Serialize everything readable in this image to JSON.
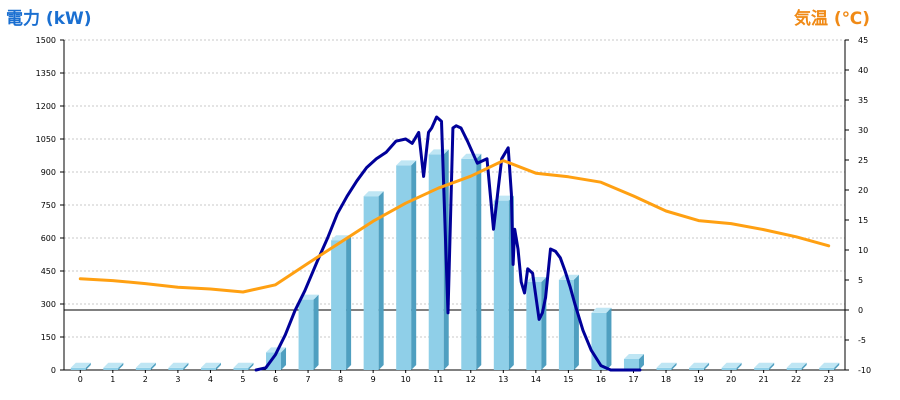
{
  "titles": {
    "left": "電力 (kW)",
    "right": "気温 (℃)"
  },
  "colors": {
    "left_title": "#1a6fd1",
    "right_title": "#f08a16",
    "bar_front": "#8fcfe8",
    "bar_side": "#4f9fc0",
    "bar_top": "#bfe6f4",
    "line_power": "#000099",
    "line_temp": "#ffa012",
    "grid": "#c8c8c8"
  },
  "chart_data": {
    "type": "bar",
    "title": "",
    "categories": [
      "0",
      "1",
      "2",
      "3",
      "4",
      "5",
      "6",
      "7",
      "8",
      "9",
      "10",
      "11",
      "12",
      "13",
      "14",
      "15",
      "16",
      "17",
      "18",
      "19",
      "20",
      "21",
      "22",
      "23"
    ],
    "left_axis": {
      "label": "電力 (kW)",
      "range": [
        0,
        1500
      ],
      "ticks": [
        0,
        150,
        300,
        450,
        600,
        750,
        900,
        1050,
        1200,
        1350,
        1500
      ]
    },
    "right_axis": {
      "label": "気温 (℃)",
      "range": [
        -10,
        45
      ],
      "ticks": [
        -10,
        -5,
        0,
        5,
        10,
        15,
        20,
        25,
        30,
        35,
        40,
        45
      ]
    },
    "grid": true,
    "series": [
      {
        "type": "bar",
        "axis": "left",
        "values": [
          10,
          10,
          10,
          10,
          10,
          10,
          80,
          320,
          590,
          790,
          930,
          980,
          960,
          770,
          400,
          410,
          260,
          50,
          10,
          10,
          10,
          10,
          10,
          10
        ]
      },
      {
        "type": "line",
        "axis": "left",
        "x": [
          5.4,
          5.7,
          6,
          6.3,
          6.6,
          6.9,
          7.1,
          7.3,
          7.6,
          7.9,
          8.2,
          8.5,
          8.8,
          9.1,
          9.4,
          9.7,
          10,
          10.2,
          10.4,
          10.55,
          10.7,
          10.8,
          10.95,
          11.1,
          11.3,
          11.45,
          11.55,
          11.7,
          11.9,
          12.2,
          12.5,
          12.7,
          12.95,
          13.15,
          13.25,
          13.3,
          13.35,
          13.45,
          13.55,
          13.65,
          13.75,
          13.9,
          14.1,
          14.2,
          14.3,
          14.45,
          14.6,
          14.75,
          14.9,
          15.05,
          15.2,
          15.45,
          15.7,
          16,
          16.3,
          16.6,
          16.9,
          17.2
        ],
        "values": [
          0,
          10,
          70,
          160,
          270,
          360,
          430,
          500,
          600,
          710,
          790,
          860,
          920,
          960,
          990,
          1040,
          1050,
          1030,
          1080,
          880,
          1080,
          1100,
          1150,
          1130,
          260,
          1100,
          1110,
          1100,
          1040,
          940,
          960,
          640,
          960,
          1010,
          800,
          480,
          640,
          550,
          400,
          350,
          460,
          440,
          230,
          260,
          330,
          550,
          540,
          510,
          450,
          380,
          300,
          180,
          90,
          20,
          0,
          0,
          0,
          0
        ]
      },
      {
        "type": "line",
        "axis": "right",
        "x": [
          0,
          1,
          2,
          3,
          4,
          5,
          6,
          7,
          8,
          9,
          10,
          11,
          12,
          13,
          14,
          15,
          16,
          17,
          18,
          19,
          20,
          21,
          22,
          23
        ],
        "values": [
          5.2,
          4.9,
          4.4,
          3.8,
          3.5,
          3.0,
          4.2,
          7.8,
          11.3,
          14.8,
          17.8,
          20.3,
          22.3,
          24.9,
          22.8,
          22.2,
          21.3,
          19.0,
          16.5,
          14.9,
          14.4,
          13.4,
          12.2,
          10.7
        ]
      }
    ],
    "reference_lines": [
      {
        "axis": "right",
        "value": 0
      }
    ]
  }
}
